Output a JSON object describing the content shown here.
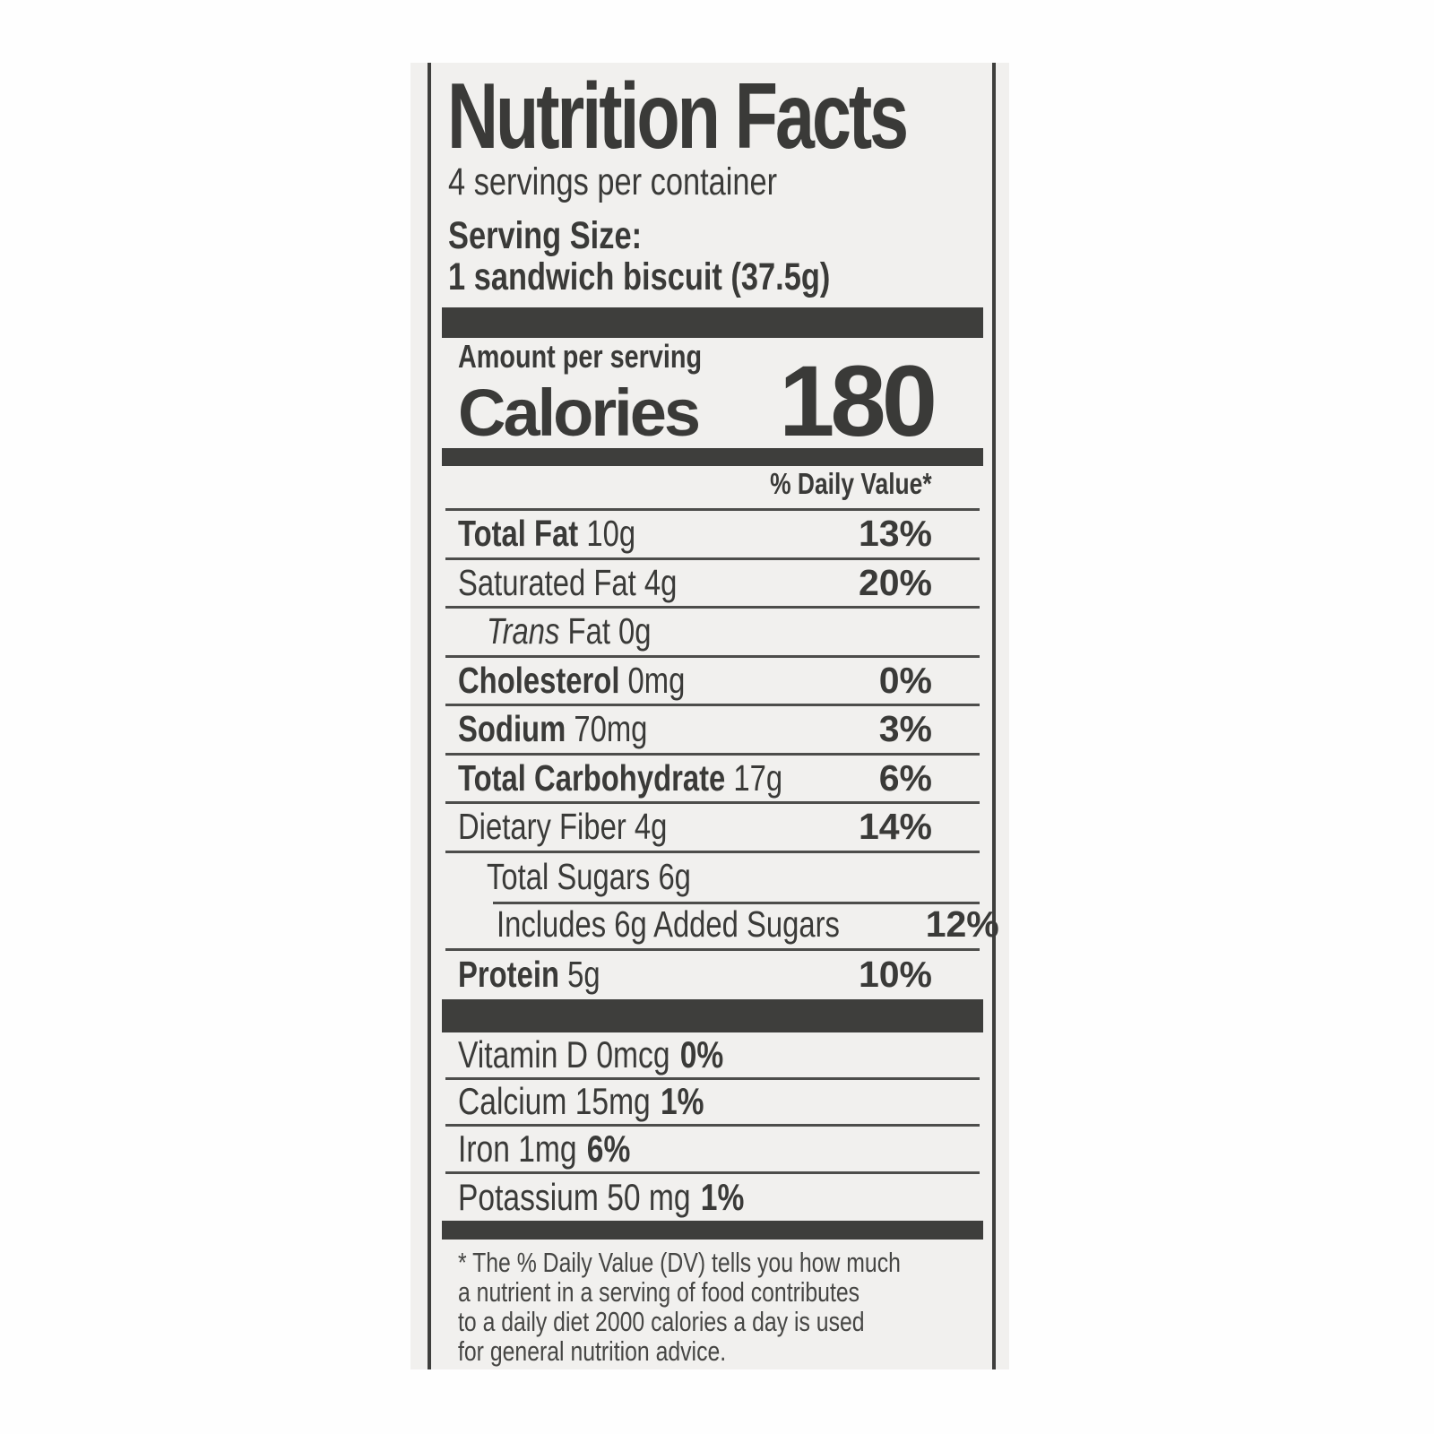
{
  "label": {
    "title": "Nutrition Facts",
    "servings_per_container": "4 servings per container",
    "serving_size_label": "Serving Size:",
    "serving_size_value": "1 sandwich biscuit (37.5g)",
    "amount_per_serving": "Amount per serving",
    "calories_label": "Calories",
    "calories_value": "180",
    "daily_value_header": "% Daily Value*",
    "nutrient_rows": [
      {
        "name": "Total Fat",
        "bold": true,
        "amount": "10g",
        "dv": "13%",
        "indent": 0,
        "rule_below": true
      },
      {
        "name": "Saturated Fat",
        "bold": false,
        "amount": "4g",
        "dv": "20%",
        "indent": 0,
        "rule_below": true
      },
      {
        "name": "Fat",
        "italic_prefix": "Trans",
        "bold": false,
        "amount": "0g",
        "dv": "",
        "indent": 1,
        "rule_below": true
      },
      {
        "name": "Cholesterol",
        "bold": true,
        "amount": "0mg",
        "dv": "0%",
        "indent": 0,
        "rule_below": true
      },
      {
        "name": "Sodium",
        "bold": true,
        "amount": "70mg",
        "dv": "3%",
        "indent": 0,
        "rule_below": true
      },
      {
        "name": "Total Carbohydrate",
        "bold": true,
        "amount": "17g",
        "dv": "6%",
        "indent": 0,
        "rule_below": true
      },
      {
        "name": "Dietary Fiber",
        "bold": false,
        "amount": "4g",
        "dv": "14%",
        "indent": 0,
        "rule_below": true
      },
      {
        "name": "Total Sugars",
        "bold": false,
        "amount": "6g",
        "dv": "",
        "indent": 1,
        "rule_below": false
      },
      {
        "name": "Includes 6g Added Sugars",
        "bold": false,
        "amount": "",
        "dv": "12%",
        "indent": 2,
        "rule_below": true,
        "rule_above_indent": true
      },
      {
        "name": "Protein",
        "bold": true,
        "amount": "5g",
        "dv": "10%",
        "indent": 0,
        "rule_below": false
      }
    ],
    "micronutrients": [
      {
        "name": "Vitamin D",
        "amount": "0mcg",
        "dv": "0%"
      },
      {
        "name": "Calcium",
        "amount": "15mg",
        "dv": "1%"
      },
      {
        "name": "Iron",
        "amount": "1mg",
        "dv": "6%"
      },
      {
        "name": "Potassium",
        "amount": "50 mg",
        "dv": "1%"
      }
    ],
    "footnote_lines": [
      "* The % Daily Value (DV) tells you how much",
      "a nutrient in a serving of food contributes",
      "to a daily diet 2000 calories a day is used",
      "for general nutrition advice."
    ],
    "colors": {
      "label_bg": "#f1f0ee",
      "ink": "#3a3a38",
      "rule": "#4d4d4b",
      "bar": "#3e3e3c",
      "page_bg": "#fefefe"
    }
  }
}
